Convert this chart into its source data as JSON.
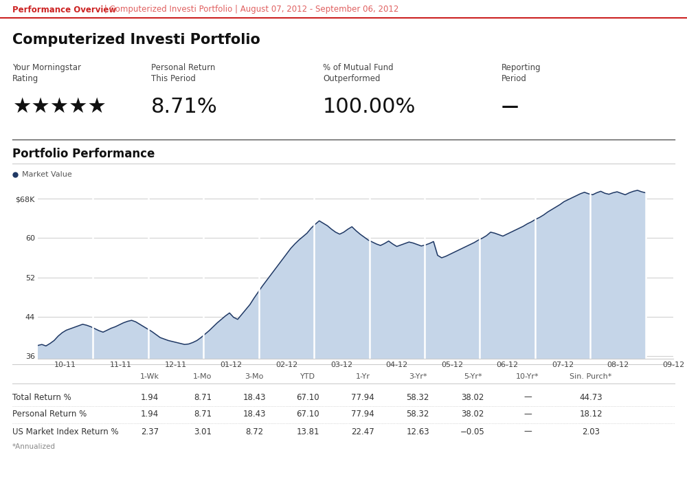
{
  "header_bold": "Performance Overview",
  "header_light": " | Computerized Investi Portfolio | August 07, 2012 - September 06, 2012",
  "portfolio_title": "Computerized Investi Portfolio",
  "stats": [
    {
      "label": "Your Morningstar\nRating",
      "value": "★★★★★"
    },
    {
      "label": "Personal Return\nThis Period",
      "value": "8.71%"
    },
    {
      "label": "% of Mutual Fund\nOutperformed",
      "value": "100.00%"
    },
    {
      "label": "Reporting\nPeriod",
      "value": "—"
    }
  ],
  "chart_title": "Portfolio Performance",
  "legend_label": "Market Value",
  "legend_color": "#1f3864",
  "x_labels": [
    "10-11",
    "11-11",
    "12-11",
    "01-12",
    "02-12",
    "03-12",
    "04-12",
    "05-12",
    "06-12",
    "07-12",
    "08-12",
    "09-12"
  ],
  "y_ticks": [
    36,
    44,
    52,
    60,
    68
  ],
  "y_tick_labels": [
    "36",
    "44",
    "52",
    "60",
    "$68K"
  ],
  "y_min": 35.5,
  "y_max": 71.5,
  "chart_line_color": "#1f3864",
  "chart_fill_color": "#c5d5e8",
  "table_col_headers": [
    "",
    "1-Wk",
    "1-Mo",
    "3-Mo",
    "YTD",
    "1-Yr",
    "3-Yr*",
    "5-Yr*",
    "10-Yr*",
    "Sin. Purch*"
  ],
  "table_rows": [
    {
      "label": "Total Return %",
      "values": [
        "1.94",
        "8.71",
        "18.43",
        "67.10",
        "77.94",
        "58.32",
        "38.02",
        "—",
        "44.73"
      ]
    },
    {
      "label": "Personal Return %",
      "values": [
        "1.94",
        "8.71",
        "18.43",
        "67.10",
        "77.94",
        "58.32",
        "38.02",
        "—",
        "18.12"
      ]
    },
    {
      "label": "US Market Index Return %",
      "values": [
        "2.37",
        "3.01",
        "8.72",
        "13.81",
        "22.47",
        "12.63",
        "−0.05",
        "—",
        "2.03"
      ]
    }
  ],
  "annualized_note": "*Annualized",
  "bg_color": "#ffffff",
  "header_red": "#cc2222",
  "header_subtitle_color": "#e06060",
  "separator_light": "#cccccc",
  "separator_dark": "#555555",
  "chart_data_y": [
    38.2,
    38.4,
    38.1,
    38.6,
    39.2,
    40.1,
    40.8,
    41.3,
    41.6,
    41.9,
    42.2,
    42.5,
    42.3,
    42.0,
    41.6,
    41.2,
    40.9,
    41.3,
    41.7,
    42.0,
    42.4,
    42.8,
    43.1,
    43.3,
    43.0,
    42.5,
    42.0,
    41.5,
    41.0,
    40.4,
    39.8,
    39.5,
    39.2,
    39.0,
    38.8,
    38.6,
    38.4,
    38.5,
    38.8,
    39.2,
    39.8,
    40.5,
    41.2,
    42.0,
    42.8,
    43.5,
    44.2,
    44.8,
    43.9,
    43.5,
    44.5,
    45.5,
    46.5,
    47.8,
    49.0,
    50.2,
    51.3,
    52.4,
    53.5,
    54.6,
    55.7,
    56.8,
    57.9,
    58.8,
    59.6,
    60.3,
    61.0,
    62.0,
    62.8,
    63.5,
    63.0,
    62.5,
    61.8,
    61.2,
    60.8,
    61.2,
    61.8,
    62.3,
    61.5,
    60.8,
    60.2,
    59.6,
    59.2,
    58.8,
    58.5,
    58.9,
    59.4,
    58.8,
    58.3,
    58.6,
    58.9,
    59.2,
    59.0,
    58.7,
    58.4,
    58.6,
    58.9,
    59.3,
    56.5,
    56.0,
    56.3,
    56.7,
    57.1,
    57.5,
    57.9,
    58.3,
    58.7,
    59.1,
    59.6,
    60.0,
    60.5,
    61.2,
    61.0,
    60.7,
    60.4,
    60.8,
    61.2,
    61.6,
    62.0,
    62.4,
    62.9,
    63.3,
    63.8,
    64.2,
    64.7,
    65.3,
    65.8,
    66.3,
    66.8,
    67.4,
    67.8,
    68.2,
    68.6,
    69.0,
    69.3,
    69.0,
    68.8,
    69.2,
    69.5,
    69.1,
    68.9,
    69.2,
    69.4,
    69.1,
    68.8,
    69.2,
    69.5,
    69.7,
    69.4,
    69.2
  ]
}
